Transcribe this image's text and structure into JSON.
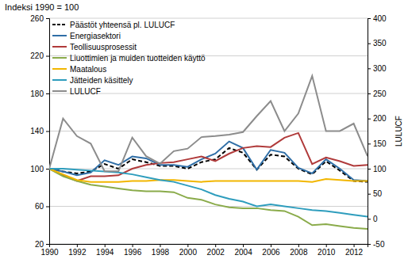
{
  "chart_data": {
    "type": "line",
    "y_label": "Indeksi 1990 = 100",
    "y2_label": "LULUCF",
    "x": [
      1990,
      1991,
      1992,
      1993,
      1994,
      1995,
      1996,
      1997,
      1998,
      1999,
      2000,
      2001,
      2002,
      2003,
      2004,
      2005,
      2006,
      2007,
      2008,
      2009,
      2010,
      2011,
      2012,
      2013
    ],
    "xlim": [
      1990,
      2013
    ],
    "xticks": [
      1990,
      1992,
      1994,
      1996,
      1998,
      2000,
      2002,
      2004,
      2006,
      2008,
      2010,
      2012
    ],
    "ylim": [
      20,
      260
    ],
    "yticks": [
      20,
      60,
      100,
      140,
      180,
      220,
      260
    ],
    "y2lim": [
      -50,
      400
    ],
    "y2ticks": [
      -50,
      0,
      50,
      100,
      150,
      200,
      250,
      300,
      350,
      400
    ],
    "grid": true,
    "legend": "top-left",
    "series": [
      {
        "name": "Päästöt yhteensä pl. LULUCF",
        "color": "#000000",
        "line_style": "dashed",
        "values": [
          100,
          97,
          95,
          97,
          105,
          100,
          110,
          107,
          103,
          103,
          100,
          107,
          110,
          122,
          117,
          99,
          115,
          113,
          100,
          94,
          108,
          98,
          87,
          86
        ]
      },
      {
        "name": "Energiasektori",
        "color": "#2f6ea6",
        "values": [
          100,
          97,
          93,
          96,
          109,
          104,
          113,
          111,
          104,
          104,
          102,
          110,
          116,
          129,
          122,
          99,
          120,
          117,
          101,
          95,
          110,
          100,
          88,
          87
        ]
      },
      {
        "name": "Teollisuusprosessit",
        "color": "#b03a3a",
        "values": [
          100,
          93,
          87,
          92,
          92,
          93,
          100,
          104,
          106,
          107,
          110,
          113,
          108,
          116,
          122,
          124,
          123,
          133,
          138,
          105,
          112,
          108,
          103,
          104
        ]
      },
      {
        "name": "Liuottimien ja muiden tuotteiden käyttö",
        "color": "#8aab4a",
        "values": [
          100,
          92,
          87,
          83,
          81,
          79,
          77,
          76,
          76,
          75,
          69,
          67,
          62,
          59,
          58,
          58,
          56,
          55,
          49,
          40,
          41,
          39,
          37,
          36
        ]
      },
      {
        "name": "Maatalous",
        "color": "#f2b600",
        "values": [
          100,
          94,
          88,
          86,
          86,
          86,
          87,
          87,
          88,
          88,
          87,
          86,
          87,
          87,
          87,
          87,
          87,
          87,
          87,
          86,
          89,
          88,
          87,
          87
        ]
      },
      {
        "name": "Jätteiden käsittely",
        "color": "#2e9dbd",
        "values": [
          100,
          100,
          99,
          98,
          97,
          96,
          94,
          91,
          88,
          86,
          82,
          78,
          72,
          68,
          65,
          60,
          62,
          60,
          58,
          56,
          55,
          53,
          51,
          49
        ]
      },
      {
        "name": "LULUCF",
        "color": "#8c8c8c",
        "axis": "y2",
        "values": [
          100,
          200,
          165,
          150,
          95,
          95,
          162,
          125,
          110,
          135,
          140,
          163,
          165,
          168,
          173,
          205,
          235,
          175,
          210,
          285,
          175,
          175,
          190,
          125
        ]
      }
    ]
  }
}
